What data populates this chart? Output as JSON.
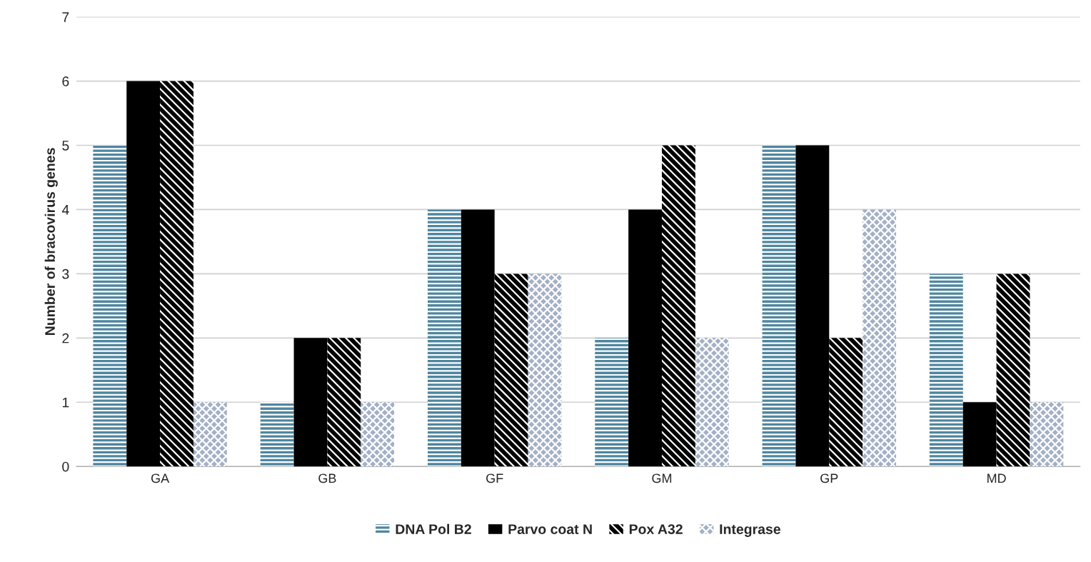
{
  "chart_data": {
    "type": "bar",
    "ylabel": "Number of bracovirus genes",
    "categories": [
      "GA",
      "GB",
      "GF",
      "GM",
      "GP",
      "MD"
    ],
    "series": [
      {
        "name": "DNA Pol B2",
        "color": "#4f86a0",
        "values": [
          5,
          1,
          4,
          2,
          5,
          3
        ]
      },
      {
        "name": "Parvo coat N",
        "color": "#000000",
        "values": [
          6,
          2,
          4,
          4,
          5,
          1
        ]
      },
      {
        "name": "Pox A32",
        "color": "#000000",
        "values": [
          6,
          2,
          3,
          5,
          2,
          3
        ]
      },
      {
        "name": "Integrase",
        "color": "#a4b0c6",
        "values": [
          1,
          1,
          3,
          2,
          4,
          1
        ]
      }
    ],
    "ylim": [
      0,
      7
    ],
    "yticks": [
      0,
      1,
      2,
      3,
      4,
      5,
      6,
      7
    ],
    "grid": "y",
    "legend": "bottom"
  }
}
